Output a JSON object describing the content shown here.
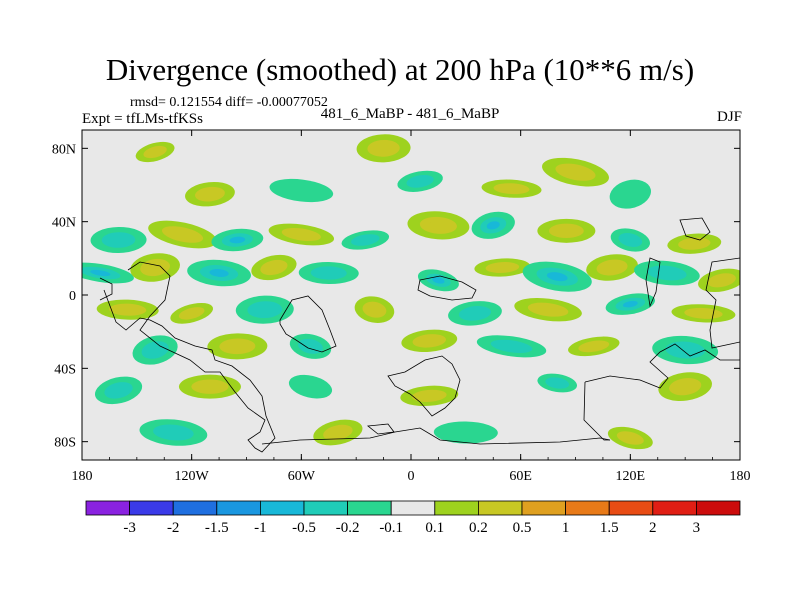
{
  "header": {
    "title": "Divergence (smoothed) at 200 hPa (10**6 m/s)",
    "stats": "rmsd= 0.121554 diff= -0.00077052",
    "experiment": "Expt = tfLMs-tfKSs",
    "run_label": "481_6_MaBP - 481_6_MaBP",
    "season": "DJF"
  },
  "chart_data": {
    "type": "heatmap",
    "title": "Divergence (smoothed) at 200 hPa (10**6 m/s)",
    "x_range": [
      -180,
      180
    ],
    "y_range": [
      -90,
      90
    ],
    "x_ticks": [
      {
        "value": -180,
        "label": "180"
      },
      {
        "value": -120,
        "label": "120W"
      },
      {
        "value": -60,
        "label": "60W"
      },
      {
        "value": 0,
        "label": "0"
      },
      {
        "value": 60,
        "label": "60E"
      },
      {
        "value": 120,
        "label": "120E"
      },
      {
        "value": 180,
        "label": "180"
      }
    ],
    "y_ticks": [
      {
        "value": 80,
        "label": "80N"
      },
      {
        "value": 40,
        "label": "40N"
      },
      {
        "value": 0,
        "label": "0"
      },
      {
        "value": -40,
        "label": "40S"
      },
      {
        "value": -80,
        "label": "80S"
      }
    ],
    "colorbar": {
      "levels": [
        "-3",
        "-2",
        "-1.5",
        "-1",
        "-0.5",
        "-0.2",
        "-0.1",
        "0.1",
        "0.2",
        "0.5",
        "1",
        "1.5",
        "2",
        "3"
      ],
      "colors": [
        "#8a22e0",
        "#3a3ae8",
        "#1f6fe0",
        "#1a97e0",
        "#18b8d8",
        "#20ccb8",
        "#2ad690",
        "#e8e8e8",
        "#9ed21e",
        "#c8c824",
        "#dfa020",
        "#e87a18",
        "#e84c14",
        "#e01e14",
        "#cc0c0c"
      ]
    },
    "anomaly_blobs": [
      {
        "lon": -140,
        "lat": 78,
        "level": 0.2
      },
      {
        "lon": -15,
        "lat": 80,
        "level": 0.2
      },
      {
        "lon": 90,
        "lat": 67,
        "level": 0.2
      },
      {
        "lon": -110,
        "lat": 55,
        "level": 0.2
      },
      {
        "lon": -60,
        "lat": 57,
        "level": -0.1
      },
      {
        "lon": 5,
        "lat": 62,
        "level": -0.2
      },
      {
        "lon": 55,
        "lat": 58,
        "level": 0.2
      },
      {
        "lon": 120,
        "lat": 55,
        "level": -0.1
      },
      {
        "lon": -160,
        "lat": 30,
        "level": -0.2
      },
      {
        "lon": -125,
        "lat": 33,
        "level": 0.2
      },
      {
        "lon": -95,
        "lat": 30,
        "level": -0.5
      },
      {
        "lon": -60,
        "lat": 33,
        "level": 0.5
      },
      {
        "lon": -25,
        "lat": 30,
        "level": -0.2
      },
      {
        "lon": 15,
        "lat": 38,
        "level": 0.5
      },
      {
        "lon": 45,
        "lat": 38,
        "level": -0.5
      },
      {
        "lon": 85,
        "lat": 35,
        "level": 0.5
      },
      {
        "lon": 120,
        "lat": 30,
        "level": -0.2
      },
      {
        "lon": 155,
        "lat": 28,
        "level": 0.2
      },
      {
        "lon": -170,
        "lat": 12,
        "level": -0.5
      },
      {
        "lon": -140,
        "lat": 15,
        "level": 0.5
      },
      {
        "lon": -105,
        "lat": 12,
        "level": -0.5
      },
      {
        "lon": -75,
        "lat": 15,
        "level": 0.2
      },
      {
        "lon": -45,
        "lat": 12,
        "level": -0.2
      },
      {
        "lon": 15,
        "lat": 8,
        "level": -0.5
      },
      {
        "lon": 50,
        "lat": 15,
        "level": 0.5
      },
      {
        "lon": 80,
        "lat": 10,
        "level": -0.5
      },
      {
        "lon": 110,
        "lat": 15,
        "level": 0.5
      },
      {
        "lon": 140,
        "lat": 12,
        "level": -0.2
      },
      {
        "lon": 170,
        "lat": 8,
        "level": 0.2
      },
      {
        "lon": -155,
        "lat": -8,
        "level": 0.2
      },
      {
        "lon": -120,
        "lat": -10,
        "level": 0.5
      },
      {
        "lon": -80,
        "lat": -8,
        "level": -0.2
      },
      {
        "lon": -20,
        "lat": -8,
        "level": 0.5
      },
      {
        "lon": 35,
        "lat": -10,
        "level": -0.2
      },
      {
        "lon": 75,
        "lat": -8,
        "level": 0.2
      },
      {
        "lon": 120,
        "lat": -5,
        "level": -0.5
      },
      {
        "lon": 160,
        "lat": -10,
        "level": 0.5
      },
      {
        "lon": -140,
        "lat": -30,
        "level": -0.2
      },
      {
        "lon": -95,
        "lat": -28,
        "level": 0.2
      },
      {
        "lon": -55,
        "lat": -28,
        "level": -0.2
      },
      {
        "lon": 10,
        "lat": -25,
        "level": 0.2
      },
      {
        "lon": 55,
        "lat": -28,
        "level": -0.2
      },
      {
        "lon": 100,
        "lat": -28,
        "level": 0.2
      },
      {
        "lon": 150,
        "lat": -30,
        "level": -0.2
      },
      {
        "lon": -160,
        "lat": -52,
        "level": -0.2
      },
      {
        "lon": -110,
        "lat": -50,
        "level": 0.2
      },
      {
        "lon": -55,
        "lat": -50,
        "level": -0.1
      },
      {
        "lon": 10,
        "lat": -55,
        "level": 0.2
      },
      {
        "lon": 80,
        "lat": -48,
        "level": -0.2
      },
      {
        "lon": 150,
        "lat": -50,
        "level": 0.2
      },
      {
        "lon": -130,
        "lat": -75,
        "level": -0.2
      },
      {
        "lon": -40,
        "lat": -75,
        "level": 0.2
      },
      {
        "lon": 30,
        "lat": -75,
        "level": -0.1
      },
      {
        "lon": 120,
        "lat": -78,
        "level": 0.2
      }
    ]
  }
}
